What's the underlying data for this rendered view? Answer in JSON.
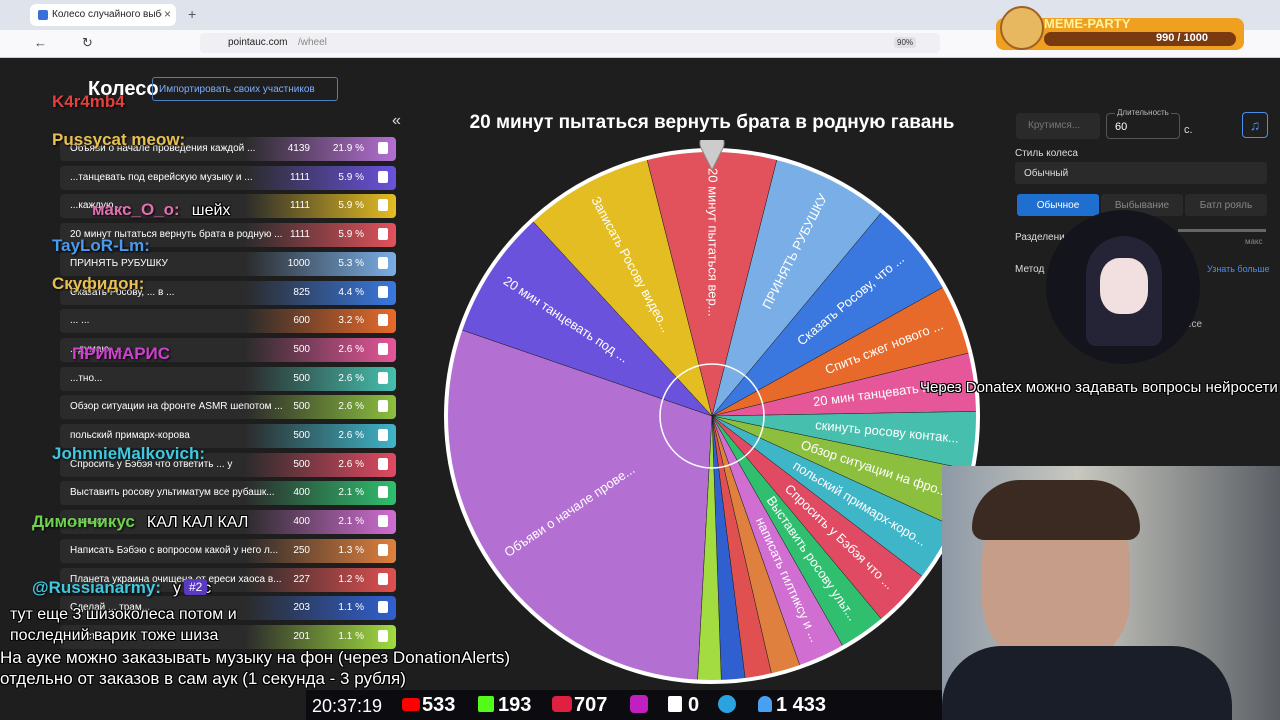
{
  "browser": {
    "tab_title": "Колесо случайного выбора – I",
    "url_host": "pointauc.com",
    "url_path": "/wheel",
    "zoom": "90%",
    "extension_counter": "990 / 1000",
    "extension_name": "MEME-PARTY"
  },
  "header": {
    "title": "Колесо",
    "import_button": "Импортировать своих участников",
    "collapse": "«"
  },
  "participants": [
    {
      "name": "Объяви о начале проведения каждой ...",
      "amount": 4139,
      "percent": "21.9 %",
      "color": "#b46fd2"
    },
    {
      "name": "...танцевать под еврейскую музыку и ...",
      "amount": 1111,
      "percent": "5.9 %",
      "color": "#6a52dc"
    },
    {
      "name": "...каждую ...",
      "amount": 1111,
      "percent": "5.9 %",
      "color": "#e4bd22"
    },
    {
      "name": "20 минут пытаться вернуть брата в родную ...",
      "amount": 1111,
      "percent": "5.9 %",
      "color": "#e2525c"
    },
    {
      "name": "ПРИНЯТЬ РУБУШКУ",
      "amount": 1000,
      "percent": "5.3 %",
      "color": "#7aaee6"
    },
    {
      "name": "Сказать Росову, ... в ...",
      "amount": 825,
      "percent": "4.4 %",
      "color": "#3a78e0"
    },
    {
      "name": "... ...",
      "amount": 600,
      "percent": "3.2 %",
      "color": "#e86a2a"
    },
    {
      "name": "...думаю, ...",
      "amount": 500,
      "percent": "2.6 %",
      "color": "#e6579a"
    },
    {
      "name": "...тно...",
      "amount": 500,
      "percent": "2.6 %",
      "color": "#46bfae"
    },
    {
      "name": "Обзор ситуации на фронте ASMR шепотом ...",
      "amount": 500,
      "percent": "2.6 %",
      "color": "#8cbf3e"
    },
    {
      "name": "польский примарх-корова",
      "amount": 500,
      "percent": "2.6 %",
      "color": "#3fb5c8"
    },
    {
      "name": "Спросить у Бэбэя что ответить ... у",
      "amount": 500,
      "percent": "2.6 %",
      "color": "#e04a62"
    },
    {
      "name": "Выставить росову ультиматум все рубашк...",
      "amount": 400,
      "percent": "2.1 %",
      "color": "#2fbf6e"
    },
    {
      "name": "...инько...",
      "amount": 400,
      "percent": "2.1 %",
      "color": "#d06ed2"
    },
    {
      "name": "Написать Бэбэю с вопросом какой у него л...",
      "amount": 250,
      "percent": "1.3 %",
      "color": "#e0803e"
    },
    {
      "name": "Планета украина очищена от ереси хаоса в...",
      "amount": 227,
      "percent": "1.2 %",
      "color": "#e05050"
    },
    {
      "name": "Сделай ... трам...",
      "amount": 203,
      "percent": "1.1 %",
      "color": "#3060d0"
    },
    {
      "name": "... встреч...",
      "amount": 201,
      "percent": "1.1 %",
      "color": "#a2dc40"
    }
  ],
  "wheel": {
    "title": "20 минут пытаться вернуть брата в родную гавань",
    "labels": [
      "Объяви о начале прове...",
      "20 мин танцевать под ...",
      "Записать Росову видео...",
      "20 минут пытаться вер...",
      "ПРИНЯТЬ РУБУШКУ",
      "Сказать Росову, что ...",
      "Спить сжег нового ...",
      "20 мин танцевать под ...",
      "скинуть росову контак...",
      "Обзор ситуации на фро...",
      "польский примарх-коро...",
      "Спросить у Бэбэя что ...",
      "Выставить росову ульт...",
      "написать гилтиксу и ..."
    ]
  },
  "settings": {
    "spin_button": "Крутимся...",
    "duration_label": "Длительность",
    "duration": 60,
    "duration_unit": "с.",
    "style_label": "Стиль колеса",
    "style_value": "Обычный",
    "modes": [
      "Обычное",
      "Выбывание",
      "Батл рояль"
    ],
    "split_label": "Разделени",
    "max_label": "макс",
    "method_label": "Метод",
    "learn_more": "Узнать больше",
    "more": "есе"
  },
  "chat": [
    {
      "user": "K4r4mb4",
      "color": "#e04040",
      "x": 52,
      "y": 102
    },
    {
      "user": "Pussycat meow:",
      "color": "#e8c050",
      "x": 52,
      "y": 140
    },
    {
      "user": "макс_O_o:",
      "color": "#e070b0",
      "x": 92,
      "y": 210,
      "text": "шейх"
    },
    {
      "user": "TayLoR-Lm:",
      "color": "#4a9af0",
      "x": 52,
      "y": 246
    },
    {
      "user": "Скуфидон:",
      "color": "#e8c050",
      "x": 52,
      "y": 284
    },
    {
      "user": "ПРИМАРИС",
      "color": "#d040d0",
      "x": 72,
      "y": 354
    },
    {
      "user": "JohnnieMalkovich:",
      "color": "#40c8e0",
      "x": 52,
      "y": 454
    },
    {
      "user": "Димончикус",
      "color": "#70d050",
      "x": 32,
      "y": 522,
      "text": "КАЛ КАЛ КАЛ"
    },
    {
      "user": "@Russianarmy:",
      "color": "#40c8e0",
      "x": 32,
      "y": 588,
      "text": "у нас"
    }
  ],
  "chat_badge": "#2",
  "chat_lines": [
    "тут еще 3 шизоколеса потом и",
    "последний варик тоже шиза"
  ],
  "overlay": {
    "donatex": "Через Donatex можно задавать вопросы нейросети",
    "music_1": "На ауке можно заказывать музыку на фон (через DonationAlerts)",
    "music_2": "отдельно от заказов в сам аук (1 секунда - 3 рубля)"
  },
  "stats": {
    "time": "20:37:19",
    "youtube": 533,
    "kick": 193,
    "vk": 707,
    "rumble": 0,
    "viewers": "1 433"
  }
}
